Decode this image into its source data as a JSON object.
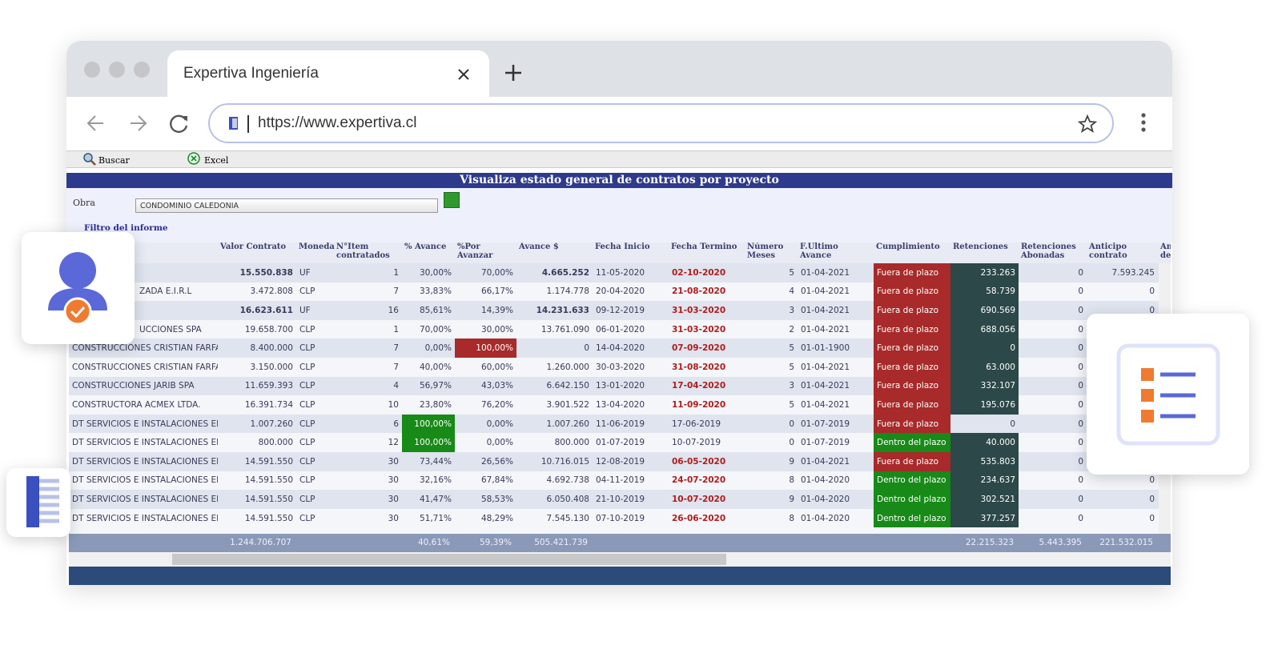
{
  "tab": {
    "title": "Expertiva Ingeniería"
  },
  "address": {
    "url": "https://www.expertiva.cl"
  },
  "toolbar": {
    "buttons": [
      "Buscar",
      "Excel"
    ]
  },
  "page": {
    "title": "Visualiza estado general de contratos por proyecto"
  },
  "filter": {
    "label": "Obra",
    "value": "CONDOMINIO CALEDONIA",
    "link": "Filtro del informe"
  },
  "table": {
    "headers": [
      null,
      "Valor Contrato",
      "Moneda",
      "N°Item contratados",
      "% Avance",
      "%Por Avanzar",
      "Avance $",
      "Fecha Inicio",
      "Fecha Termino",
      "Número Meses",
      "F.Ultimo Avance",
      "Cumplimiento",
      "Retenciones",
      "Retenciones Abonadas",
      "Anticipo contrato",
      "An de"
    ],
    "rows": [
      [
        null,
        "15.550.838",
        "UF",
        "1",
        "30,00%",
        "70,00%",
        "4.665.252",
        "11-05-2020",
        "02-10-2020",
        "5",
        "01-04-2021",
        "Fuera de plazo",
        "233.263",
        "0",
        "7.593.245"
      ],
      [
        "ZADA E.I.R.L",
        "3.472.808",
        "CLP",
        "7",
        "33,83%",
        "66,17%",
        "1.174.778",
        "20-04-2020",
        "21-08-2020",
        "4",
        "01-04-2021",
        "Fuera de plazo",
        "58.739",
        "0",
        "0"
      ],
      [
        null,
        "16.623.611",
        "UF",
        "16",
        "85,61%",
        "14,39%",
        "14.231.633",
        "09-12-2019",
        "31-03-2020",
        "3",
        "01-04-2021",
        "Fuera de plazo",
        "690.569",
        "0",
        "0"
      ],
      [
        "UCCIONES SPA",
        "19.658.700",
        "CLP",
        "1",
        "70,00%",
        "30,00%",
        "13.761.090",
        "06-01-2020",
        "31-03-2020",
        "2",
        "01-04-2021",
        "Fuera de plazo",
        "688.056",
        "0"
      ],
      [
        "CONSTRUCCIONES CRISTIAN FARFAN",
        "8.400.000",
        "CLP",
        "7",
        "0,00%",
        "100,00%",
        "0",
        "14-04-2020",
        "07-09-2020",
        "5",
        "01-01-1900",
        "Fuera de plazo",
        "0",
        "0"
      ],
      [
        "CONSTRUCCIONES CRISTIAN FARFAN",
        "3.150.000",
        "CLP",
        "7",
        "40,00%",
        "60,00%",
        "1.260.000",
        "30-03-2020",
        "31-08-2020",
        "5",
        "01-04-2021",
        "Fuera de plazo",
        "63.000",
        "0"
      ],
      [
        "CONSTRUCCIONES JARIB SPA",
        "11.659.393",
        "CLP",
        "4",
        "56,97%",
        "43,03%",
        "6.642.150",
        "13-01-2020",
        "17-04-2020",
        "3",
        "01-04-2021",
        "Fuera de plazo",
        "332.107",
        "0"
      ],
      [
        "CONSTRUCTORA ACMEX  LTDA.",
        "16.391.734",
        "CLP",
        "10",
        "23,80%",
        "76,20%",
        "3.901.522",
        "13-04-2020",
        "11-09-2020",
        "5",
        "01-04-2021",
        "Fuera de plazo",
        "195.076",
        "0"
      ],
      [
        "DT SERVICIOS E INSTALACIONES EIF",
        "1.007.260",
        "CLP",
        "6",
        "100,00%",
        "0,00%",
        "1.007.260",
        "11-06-2019",
        "17-06-2019",
        "0",
        "01-07-2019",
        "Fuera de plazo",
        "0",
        "0"
      ],
      [
        "DT SERVICIOS E INSTALACIONES EIF",
        "800.000",
        "CLP",
        "12",
        "100,00%",
        "0,00%",
        "800.000",
        "01-07-2019",
        "10-07-2019",
        "0",
        "01-07-2019",
        "Dentro del plazo",
        "40.000",
        "0"
      ],
      [
        "DT SERVICIOS E INSTALACIONES EIF",
        "14.591.550",
        "CLP",
        "30",
        "73,44%",
        "26,56%",
        "10.716.015",
        "12-08-2019",
        "06-05-2020",
        "9",
        "01-04-2021",
        "Fuera de plazo",
        "535.803",
        "0"
      ],
      [
        "DT SERVICIOS E INSTALACIONES EIF",
        "14.591.550",
        "CLP",
        "30",
        "32,16%",
        "67,84%",
        "4.692.738",
        "04-11-2019",
        "24-07-2020",
        "8",
        "01-04-2020",
        "Dentro del plazo",
        "234.637",
        "0",
        "0"
      ],
      [
        "DT SERVICIOS E INSTALACIONES EIF",
        "14.591.550",
        "CLP",
        "30",
        "41,47%",
        "58,53%",
        "6.050.408",
        "21-10-2019",
        "10-07-2020",
        "9",
        "01-04-2020",
        "Dentro del plazo",
        "302.521",
        "0",
        "0"
      ],
      [
        "DT SERVICIOS E INSTALACIONES EIF",
        "14.591.550",
        "CLP",
        "30",
        "51,71%",
        "48,29%",
        "7.545.130",
        "07-10-2019",
        "26-06-2020",
        "8",
        "01-04-2020",
        "Dentro del plazo",
        "377.257",
        "0",
        "0"
      ]
    ],
    "totals": [
      null,
      "1.244.706.707",
      null,
      null,
      "40,61%",
      "59,39%",
      "505.421.739",
      null,
      null,
      null,
      null,
      null,
      "22.215.323",
      "5.443.395",
      "221.532.015"
    ]
  }
}
